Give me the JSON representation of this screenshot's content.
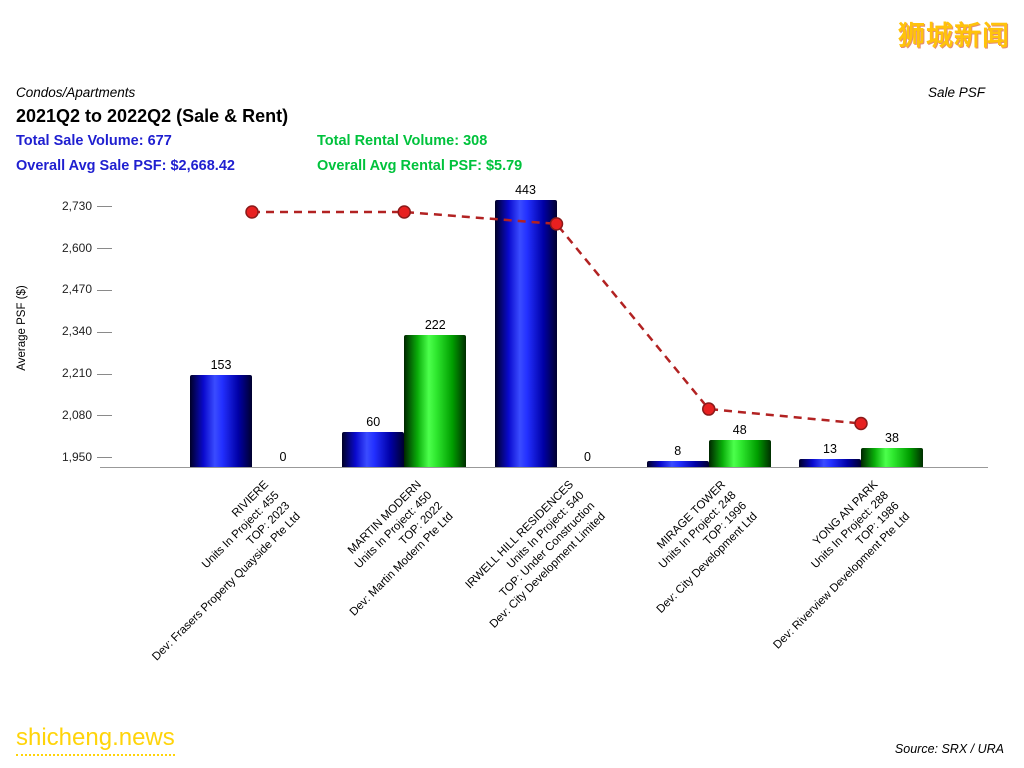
{
  "logo_text": "狮城新闻",
  "watermark_text": "shicheng.news",
  "source_text": "Source: SRX / URA",
  "header": {
    "category": "Condos/Apartments",
    "title": "2021Q2 to 2022Q2 (Sale & Rent)",
    "sale_psf_label": "Sale PSF",
    "total_sale_volume": "Total Sale Volume: 677",
    "overall_avg_sale_psf": "Overall Avg Sale PSF: $2,668.42",
    "total_rental_volume": "Total Rental Volume: 308",
    "overall_avg_rental_psf": "Overall Avg Rental PSF: $5.79"
  },
  "colors": {
    "sale_text": "#1f1fd0",
    "rental_text": "#00c23c",
    "sale_bar": "#1a1aee",
    "rental_bar": "#22cc22",
    "line": "#b22222",
    "point_fill": "#e82020",
    "point_stroke": "#8b1a1a",
    "logo": "#ffc30b"
  },
  "chart_data": {
    "type": "bar",
    "title": "2021Q2 to 2022Q2 (Sale & Rent)",
    "subtitle": "Condos/Apartments",
    "ylabel": "Average PSF ($)",
    "xlabel": "",
    "y_ticks": [
      1950,
      2080,
      2210,
      2340,
      2470,
      2600,
      2730
    ],
    "ylim": [
      1920,
      2800
    ],
    "grid": false,
    "legend_position": "none",
    "line_series_name": "Sale PSF",
    "bar_label_meaning": "transaction volume printed above each bar",
    "groups": [
      {
        "name": "RIVIERE",
        "units_in_project": 455,
        "top": "2023",
        "developer": "Frasers Property Quayside Pte Ltd",
        "sale_volume": 153,
        "rental_volume": 0,
        "sale_bar_avg_psf": 2205,
        "rental_bar_avg_psf": 0,
        "sale_psf_line": 2712
      },
      {
        "name": "MARTIN MODERN",
        "units_in_project": 450,
        "top": "2022",
        "developer": "Martin Modern Pte Ltd",
        "sale_volume": 60,
        "rental_volume": 222,
        "sale_bar_avg_psf": 2030,
        "rental_bar_avg_psf": 2330,
        "sale_psf_line": 2712
      },
      {
        "name": "IRWELL HILL RESIDENCES",
        "units_in_project": 540,
        "top": "Under Construction",
        "developer": "City Development Limited",
        "sale_volume": 443,
        "rental_volume": 0,
        "sale_bar_avg_psf": 2750,
        "rental_bar_avg_psf": 0,
        "sale_psf_line": 2675
      },
      {
        "name": "MIRAGE TOWER",
        "units_in_project": 248,
        "top": "1996",
        "developer": "City Development Ltd",
        "sale_volume": 8,
        "rental_volume": 48,
        "sale_bar_avg_psf": 1940,
        "rental_bar_avg_psf": 2005,
        "sale_psf_line": 2100
      },
      {
        "name": "YONG AN PARK",
        "units_in_project": 288,
        "top": "1986",
        "developer": "Riverview Development Pte Ltd",
        "sale_volume": 13,
        "rental_volume": 38,
        "sale_bar_avg_psf": 1945,
        "rental_bar_avg_psf": 1980,
        "sale_psf_line": 2055
      }
    ]
  }
}
